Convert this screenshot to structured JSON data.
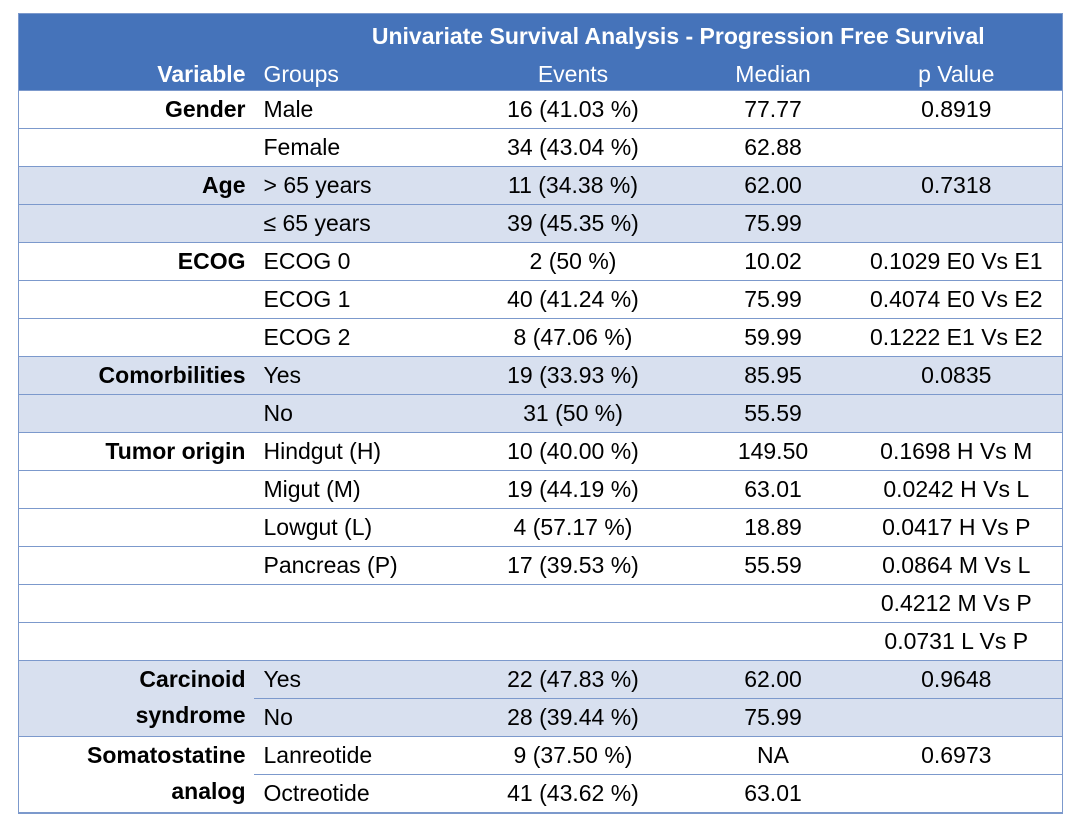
{
  "title": "Univariate Survival Analysis - Progression Free Survival",
  "columns": {
    "variable": "Variable",
    "groups": "Groups",
    "events": "Events",
    "median": "Median",
    "p_value": "p Value"
  },
  "rows": [
    {
      "variable": "Gender",
      "group": "Male",
      "events": "16 (41.03 %)",
      "median": "77.77",
      "p_value": "0.8919"
    },
    {
      "variable": "",
      "group": "Female",
      "events": "34 (43.04 %)",
      "median": "62.88",
      "p_value": ""
    },
    {
      "variable": "Age",
      "group": "> 65 years",
      "events": "11 (34.38 %)",
      "median": "62.00",
      "p_value": "0.7318"
    },
    {
      "variable": "",
      "group": "≤ 65 years",
      "events": "39 (45.35 %)",
      "median": "75.99",
      "p_value": ""
    },
    {
      "variable": "ECOG",
      "group": "ECOG 0",
      "events": "2 (50 %)",
      "median": "10.02",
      "p_value": "0.1029 E0 Vs E1"
    },
    {
      "variable": "",
      "group": "ECOG 1",
      "events": "40 (41.24 %)",
      "median": "75.99",
      "p_value": "0.4074 E0 Vs E2"
    },
    {
      "variable": "",
      "group": "ECOG 2",
      "events": "8 (47.06 %)",
      "median": "59.99",
      "p_value": "0.1222 E1 Vs E2"
    },
    {
      "variable": "Comorbilities",
      "group": "Yes",
      "events": "19 (33.93 %)",
      "median": "85.95",
      "p_value": "0.0835"
    },
    {
      "variable": "",
      "group": "No",
      "events": "31 (50 %)",
      "median": "55.59",
      "p_value": ""
    },
    {
      "variable": "Tumor origin",
      "group": "Hindgut (H)",
      "events": "10 (40.00 %)",
      "median": "149.50",
      "p_value": "0.1698 H Vs M"
    },
    {
      "variable": "",
      "group": "Migut (M)",
      "events": "19 (44.19 %)",
      "median": "63.01",
      "p_value": "0.0242 H Vs L"
    },
    {
      "variable": "",
      "group": "Lowgut (L)",
      "events": "4 (57.17 %)",
      "median": "18.89",
      "p_value": "0.0417 H Vs P"
    },
    {
      "variable": "",
      "group": "Pancreas (P)",
      "events": "17 (39.53 %)",
      "median": "55.59",
      "p_value": "0.0864 M Vs L"
    },
    {
      "variable": "",
      "group": "",
      "events": "",
      "median": "",
      "p_value": "0.4212 M Vs P"
    },
    {
      "variable": "",
      "group": "",
      "events": "",
      "median": "",
      "p_value": "0.0731 L Vs P"
    },
    {
      "variable": "Carcinoid syndrome",
      "variable_lines": [
        "Carcinoid",
        "syndrome"
      ],
      "group": "Yes",
      "events": "22 (47.83 %)",
      "median": "62.00",
      "p_value": "0.9648"
    },
    {
      "variable": "",
      "group": "No",
      "events": "28 (39.44 %)",
      "median": "75.99",
      "p_value": ""
    },
    {
      "variable": "Somatostatine analog",
      "variable_lines": [
        "Somatostatine",
        "analog"
      ],
      "group": "Lanreotide",
      "events": "9 (37.50 %)",
      "median": "NA",
      "p_value": "0.6973"
    },
    {
      "variable": "",
      "group": "Octreotide",
      "events": "41 (43.62 %)",
      "median": "63.01",
      "p_value": ""
    }
  ],
  "colors": {
    "header_bg": "#4573BA",
    "header_text": "#FFFFFF",
    "row_alt_bg": "#D8E0EF",
    "grid_line": "#7C99CC",
    "body_text": "#000000"
  },
  "chart_data": {
    "type": "table",
    "title": "Univariate Survival Analysis - Progression Free Survival",
    "columns": [
      "Variable",
      "Groups",
      "Events",
      "Median",
      "p Value"
    ],
    "rows": [
      [
        "Gender",
        "Male",
        "16 (41.03 %)",
        "77.77",
        "0.8919"
      ],
      [
        "",
        "Female",
        "34 (43.04 %)",
        "62.88",
        ""
      ],
      [
        "Age",
        "> 65 years",
        "11 (34.38 %)",
        "62.00",
        "0.7318"
      ],
      [
        "",
        "≤ 65 years",
        "39 (45.35 %)",
        "75.99",
        ""
      ],
      [
        "ECOG",
        "ECOG 0",
        "2 (50 %)",
        "10.02",
        "0.1029 E0 Vs E1"
      ],
      [
        "",
        "ECOG 1",
        "40 (41.24 %)",
        "75.99",
        "0.4074 E0 Vs E2"
      ],
      [
        "",
        "ECOG 2",
        "8 (47.06 %)",
        "59.99",
        "0.1222 E1 Vs E2"
      ],
      [
        "Comorbilities",
        "Yes",
        "19 (33.93 %)",
        "85.95",
        "0.0835"
      ],
      [
        "",
        "No",
        "31 (50 %)",
        "55.59",
        ""
      ],
      [
        "Tumor origin",
        "Hindgut (H)",
        "10 (40.00 %)",
        "149.50",
        "0.1698 H Vs M"
      ],
      [
        "",
        "Migut (M)",
        "19 (44.19 %)",
        "63.01",
        "0.0242 H Vs L"
      ],
      [
        "",
        "Lowgut (L)",
        "4 (57.17 %)",
        "18.89",
        "0.0417 H Vs P"
      ],
      [
        "",
        "Pancreas (P)",
        "17 (39.53 %)",
        "55.59",
        "0.0864 M Vs L"
      ],
      [
        "",
        "",
        "",
        "",
        "0.4212 M Vs P"
      ],
      [
        "",
        "",
        "",
        "",
        "0.0731 L Vs P"
      ],
      [
        "Carcinoid syndrome",
        "Yes",
        "22 (47.83 %)",
        "62.00",
        "0.9648"
      ],
      [
        "",
        "No",
        "28 (39.44 %)",
        "75.99",
        ""
      ],
      [
        "Somatostatine analog",
        "Lanreotide",
        "9 (37.50 %)",
        "NA",
        "0.6973"
      ],
      [
        "",
        "Octreotide",
        "41 (43.62 %)",
        "63.01",
        ""
      ]
    ]
  }
}
